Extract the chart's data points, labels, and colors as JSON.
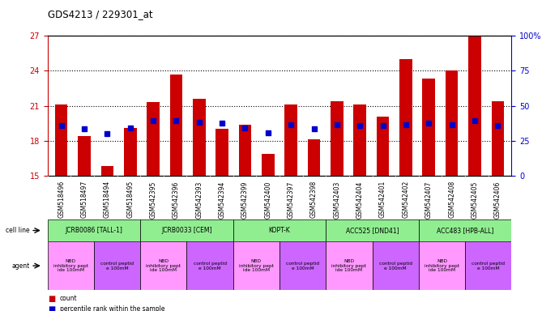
{
  "title": "GDS4213 / 229301_at",
  "samples": [
    "GSM518496",
    "GSM518497",
    "GSM518494",
    "GSM518495",
    "GSM542395",
    "GSM542396",
    "GSM542393",
    "GSM542394",
    "GSM542399",
    "GSM542400",
    "GSM542397",
    "GSM542398",
    "GSM542403",
    "GSM542404",
    "GSM542401",
    "GSM542402",
    "GSM542407",
    "GSM542408",
    "GSM542405",
    "GSM542406"
  ],
  "bar_values": [
    21.1,
    18.4,
    15.8,
    19.1,
    21.3,
    23.7,
    21.6,
    19.0,
    19.4,
    16.9,
    21.1,
    18.1,
    21.4,
    21.1,
    20.1,
    25.0,
    23.3,
    24.0,
    27.0,
    21.4
  ],
  "dot_values": [
    19.3,
    19.0,
    18.6,
    19.1,
    19.7,
    19.7,
    19.6,
    19.5,
    19.1,
    18.7,
    19.4,
    19.0,
    19.4,
    19.3,
    19.3,
    19.4,
    19.5,
    19.4,
    19.7,
    19.3
  ],
  "bar_color": "#CC0000",
  "dot_color": "#0000CC",
  "ylim_left": [
    15,
    27
  ],
  "yticks_left": [
    15,
    18,
    21,
    24,
    27
  ],
  "ylim_right": [
    0,
    100
  ],
  "yticks_right": [
    0,
    25,
    50,
    75,
    100
  ],
  "cell_lines": [
    {
      "label": "JCRB0086 [TALL-1]",
      "start": 0,
      "end": 4,
      "color": "#90EE90"
    },
    {
      "label": "JCRB0033 [CEM]",
      "start": 4,
      "end": 8,
      "color": "#90EE90"
    },
    {
      "label": "KOPT-K",
      "start": 8,
      "end": 12,
      "color": "#90EE90"
    },
    {
      "label": "ACC525 [DND41]",
      "start": 12,
      "end": 16,
      "color": "#90EE90"
    },
    {
      "label": "ACC483 [HPB-ALL]",
      "start": 16,
      "end": 20,
      "color": "#90EE90"
    }
  ],
  "agents": [
    {
      "label": "NBD\ninhibitory pept\nide 100mM",
      "start": 0,
      "end": 2,
      "color": "#FF99FF"
    },
    {
      "label": "control peptid\ne 100mM",
      "start": 2,
      "end": 4,
      "color": "#CC66FF"
    },
    {
      "label": "NBD\ninhibitory pept\nide 100mM",
      "start": 4,
      "end": 6,
      "color": "#FF99FF"
    },
    {
      "label": "control peptid\ne 100mM",
      "start": 6,
      "end": 8,
      "color": "#CC66FF"
    },
    {
      "label": "NBD\ninhibitory pept\nide 100mM",
      "start": 8,
      "end": 10,
      "color": "#FF99FF"
    },
    {
      "label": "control peptid\ne 100mM",
      "start": 10,
      "end": 12,
      "color": "#CC66FF"
    },
    {
      "label": "NBD\ninhibitory pept\nide 100mM",
      "start": 12,
      "end": 14,
      "color": "#FF99FF"
    },
    {
      "label": "control peptid\ne 100mM",
      "start": 14,
      "end": 16,
      "color": "#CC66FF"
    },
    {
      "label": "NBD\ninhibitory pept\nide 100mM",
      "start": 16,
      "end": 18,
      "color": "#FF99FF"
    },
    {
      "label": "control peptid\ne 100mM",
      "start": 18,
      "end": 20,
      "color": "#CC66FF"
    }
  ],
  "left_axis_color": "#CC0000",
  "right_axis_color": "#0000CC",
  "background_color": "#FFFFFF",
  "plot_bg_color": "#FFFFFF",
  "sample_bg_color": "#D3D3D3",
  "grid_color": "#000000"
}
